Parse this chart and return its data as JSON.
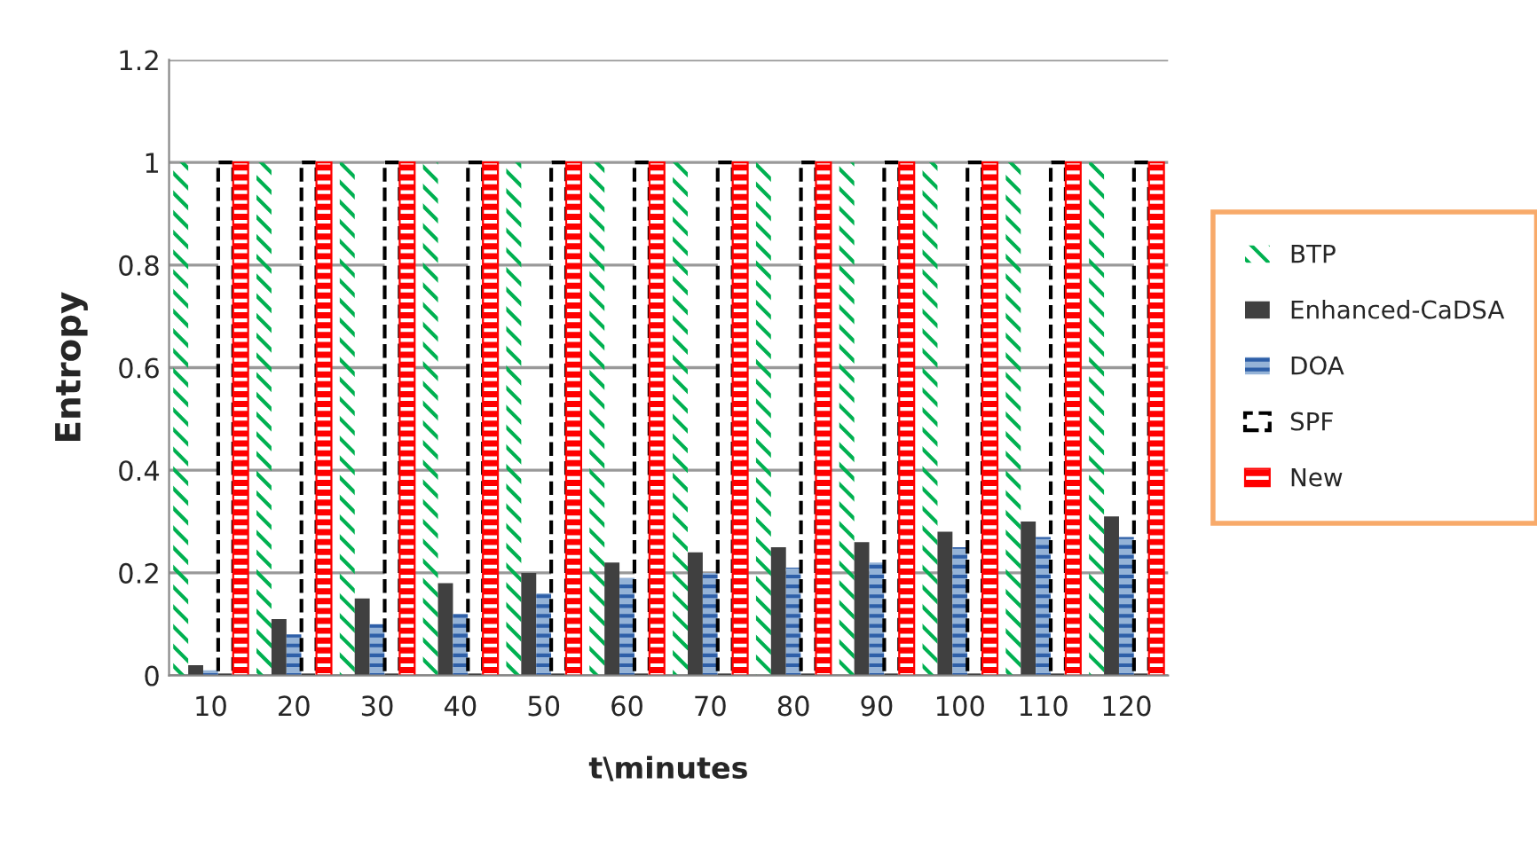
{
  "chart_data": {
    "type": "bar",
    "xlabel": "t\\minutes",
    "ylabel": "Entropy",
    "categories": [
      "10",
      "20",
      "30",
      "40",
      "50",
      "60",
      "70",
      "80",
      "90",
      "100",
      "110",
      "120"
    ],
    "series": [
      {
        "name": "BTP",
        "color": "#00b050",
        "values": [
          1,
          1,
          1,
          1,
          1,
          1,
          1,
          1,
          1,
          1,
          1,
          1
        ]
      },
      {
        "name": "Enhanced-CaDSA",
        "color": "#404040",
        "values": [
          0.02,
          0.11,
          0.15,
          0.18,
          0.2,
          0.22,
          0.24,
          0.25,
          0.26,
          0.28,
          0.3,
          0.31
        ]
      },
      {
        "name": "DOA",
        "color": "#95b3d7",
        "values": [
          0.01,
          0.08,
          0.1,
          0.12,
          0.16,
          0.19,
          0.2,
          0.21,
          0.22,
          0.25,
          0.27,
          0.27
        ]
      },
      {
        "name": "SPF",
        "color": "#ffffff",
        "values": [
          1,
          1,
          1,
          1,
          1,
          1,
          1,
          1,
          1,
          1,
          1,
          1
        ]
      },
      {
        "name": "New",
        "color": "#ff0000",
        "values": [
          1,
          1,
          1,
          1,
          1,
          1,
          1,
          1,
          1,
          1,
          1,
          1
        ]
      }
    ],
    "ylim": [
      0,
      1.2
    ],
    "yticks": [
      0,
      0.2,
      0.4,
      0.6,
      0.8,
      1,
      1.2
    ],
    "grid": "y",
    "legend": "right"
  }
}
